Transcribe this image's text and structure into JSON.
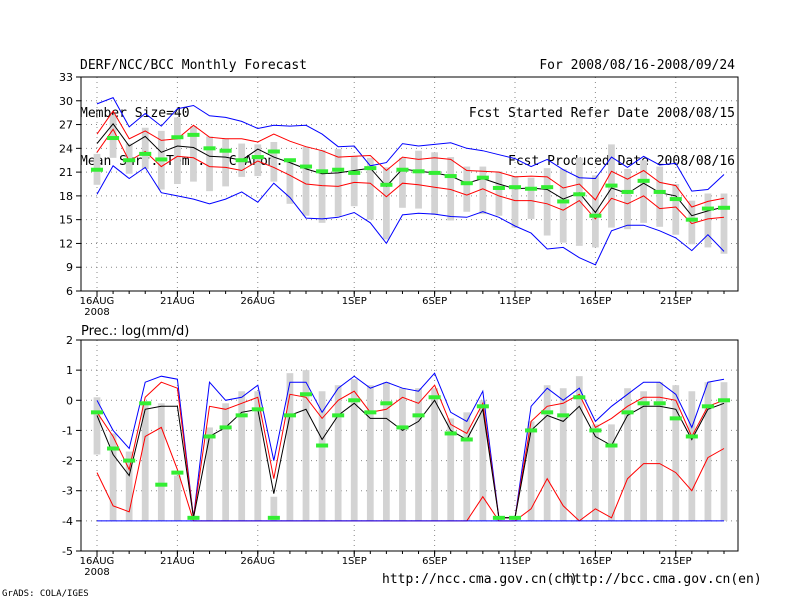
{
  "header": {
    "left": [
      "DERF/NCC/BCC Monthly Forecast",
      "Member Size=40",
      "Mean Surf. Temp.: °C Anom."
    ],
    "right": [
      "For 2008/08/16-2008/09/24",
      "Fcst Started Refer Date 2008/08/15",
      "Fcst Produced Date 2008/08/16"
    ]
  },
  "footer": {
    "url_ch": "http://ncc.cma.gov.cn(ch)",
    "url_en": "http://bcc.cma.gov.cn(en)",
    "credit": "GrADS: COLA/IGES"
  },
  "colors": {
    "envelope": "#0000ff",
    "spread": "#ff0000",
    "ensemble_mean": "#000000",
    "member_range_bar": "#d3d3d3",
    "median_marker": "#33ee33",
    "grid": "#888888"
  },
  "chart_data": [
    {
      "type": "line",
      "title": "Mean Surf. Temp.: °C Anom.",
      "x_dates": [
        "16AUG",
        "17AUG",
        "18AUG",
        "19AUG",
        "20AUG",
        "21AUG",
        "22AUG",
        "23AUG",
        "24AUG",
        "25AUG",
        "26AUG",
        "27AUG",
        "28AUG",
        "29AUG",
        "30AUG",
        "31AUG",
        "1SEP",
        "2SEP",
        "3SEP",
        "4SEP",
        "5SEP",
        "6SEP",
        "7SEP",
        "8SEP",
        "9SEP",
        "10SEP",
        "11SEP",
        "12SEP",
        "13SEP",
        "14SEP",
        "15SEP",
        "16SEP",
        "17SEP",
        "18SEP",
        "19SEP",
        "20SEP",
        "21SEP",
        "22SEP",
        "23SEP",
        "24SEP"
      ],
      "x_tick_labels": [
        "16AUG",
        "21AUG",
        "26AUG",
        "1SEP",
        "6SEP",
        "11SEP",
        "16SEP",
        "21SEP"
      ],
      "x_tick_indices": [
        0,
        5,
        10,
        16,
        21,
        26,
        31,
        36
      ],
      "x_sub_label": "2008",
      "ylim": [
        6,
        33
      ],
      "yticks": [
        6,
        9,
        12,
        15,
        18,
        21,
        24,
        27,
        30,
        33
      ],
      "series": [
        {
          "name": "max",
          "values": [
            29.6,
            30.4,
            26.7,
            28.4,
            26.8,
            29.0,
            29.4,
            28.1,
            27.9,
            27.4,
            26.5,
            26.9,
            26.8,
            26.9,
            25.8,
            24.2,
            24.3,
            21.8,
            22.2,
            24.6,
            24.3,
            24.5,
            24.7,
            24.0,
            23.7,
            23.2,
            22.7,
            21.7,
            22.6,
            21.3,
            20.3,
            20.2,
            22.9,
            21.6,
            23.0,
            21.9,
            22.1,
            18.6,
            18.8,
            20.7
          ]
        },
        {
          "name": "upper",
          "values": [
            25.8,
            28.7,
            25.2,
            26.2,
            25.0,
            25.2,
            26.9,
            25.4,
            25.2,
            25.2,
            24.8,
            25.8,
            24.9,
            24.2,
            23.7,
            22.9,
            23.0,
            23.1,
            21.2,
            22.9,
            22.6,
            22.8,
            22.6,
            21.2,
            21.1,
            21.0,
            20.4,
            20.5,
            20.4,
            19.0,
            19.5,
            17.5,
            21.1,
            20.1,
            21.2,
            19.7,
            19.3,
            16.6,
            17.3,
            17.7
          ]
        },
        {
          "name": "mean",
          "values": [
            24.6,
            27.1,
            24.3,
            25.5,
            23.5,
            24.3,
            24.1,
            23.0,
            22.9,
            22.5,
            23.9,
            22.9,
            22.2,
            21.4,
            20.8,
            20.9,
            21.2,
            21.5,
            19.2,
            21.4,
            21.1,
            20.9,
            20.5,
            19.6,
            20.2,
            19.5,
            18.9,
            19.0,
            18.8,
            17.6,
            18.4,
            15.9,
            19.0,
            18.3,
            19.6,
            18.4,
            18.0,
            15.5,
            16.1,
            16.6
          ]
        },
        {
          "name": "lower",
          "values": [
            23.5,
            26.4,
            22.4,
            23.6,
            21.7,
            23.0,
            22.8,
            21.7,
            21.6,
            21.2,
            22.4,
            21.6,
            20.6,
            19.5,
            19.3,
            19.2,
            19.7,
            19.6,
            17.9,
            19.6,
            19.4,
            19.1,
            18.8,
            18.1,
            18.9,
            18.0,
            17.4,
            17.4,
            17.0,
            16.2,
            17.4,
            15.1,
            17.7,
            17.0,
            18.0,
            16.4,
            16.6,
            14.5,
            15.1,
            15.3
          ]
        },
        {
          "name": "min",
          "values": [
            18.2,
            21.8,
            20.2,
            21.6,
            18.4,
            18.0,
            17.6,
            17.0,
            17.6,
            18.5,
            17.2,
            19.6,
            17.8,
            15.2,
            15.1,
            15.3,
            15.9,
            14.6,
            12.0,
            15.6,
            15.8,
            15.7,
            15.4,
            15.3,
            16.0,
            15.3,
            14.2,
            13.3,
            11.3,
            11.5,
            10.2,
            9.3,
            13.6,
            14.3,
            14.3,
            13.6,
            12.7,
            11.1,
            13.1,
            11.0
          ]
        }
      ],
      "range_bars": {
        "low": [
          19.4,
          22.8,
          20.8,
          21.4,
          18.8,
          19.5,
          19.8,
          18.6,
          19.2,
          20.4,
          20.5,
          19.8,
          17.0,
          15.5,
          14.6,
          15.4,
          16.7,
          15.0,
          12.5,
          16.5,
          16.4,
          15.6,
          14.9,
          16.0,
          15.7,
          15.5,
          14.0,
          15.1,
          13.0,
          12.1,
          11.7,
          11.5,
          14.0,
          13.8,
          14.6,
          14.1,
          13.1,
          11.9,
          11.5,
          10.7
        ],
        "high": [
          23.3,
          28.2,
          24.6,
          26.6,
          26.2,
          27.9,
          26.8,
          25.5,
          25.2,
          24.6,
          24.5,
          24.8,
          22.7,
          24.2,
          23.8,
          23.9,
          23.0,
          22.8,
          21.6,
          22.8,
          23.7,
          23.5,
          22.9,
          21.7,
          21.7,
          21.1,
          20.5,
          20.3,
          21.5,
          21.4,
          22.8,
          20.6,
          24.5,
          21.4,
          22.5,
          21.7,
          19.5,
          17.4,
          18.3,
          18.3
        ]
      },
      "median_markers": [
        21.3,
        25.3,
        22.5,
        23.3,
        22.6,
        25.4,
        25.7,
        24.0,
        23.7,
        22.5,
        22.9,
        23.6,
        22.5,
        21.7,
        21.1,
        21.3,
        20.9,
        21.5,
        19.4,
        21.3,
        21.1,
        20.9,
        20.5,
        19.6,
        20.3,
        19.0,
        19.1,
        18.9,
        19.1,
        17.3,
        18.2,
        15.5,
        19.3,
        18.5,
        19.9,
        18.5,
        17.6,
        15.0,
        16.4,
        16.5
      ]
    },
    {
      "type": "line",
      "title": "Prec.: log(mm/d)",
      "x_dates": [
        "16AUG",
        "17AUG",
        "18AUG",
        "19AUG",
        "20AUG",
        "21AUG",
        "22AUG",
        "23AUG",
        "24AUG",
        "25AUG",
        "26AUG",
        "27AUG",
        "28AUG",
        "29AUG",
        "30AUG",
        "31AUG",
        "1SEP",
        "2SEP",
        "3SEP",
        "4SEP",
        "5SEP",
        "6SEP",
        "7SEP",
        "8SEP",
        "9SEP",
        "10SEP",
        "11SEP",
        "12SEP",
        "13SEP",
        "14SEP",
        "15SEP",
        "16SEP",
        "17SEP",
        "18SEP",
        "19SEP",
        "20SEP",
        "21SEP",
        "22SEP",
        "23SEP",
        "24SEP"
      ],
      "x_tick_labels": [
        "16AUG",
        "21AUG",
        "26AUG",
        "1SEP",
        "6SEP",
        "11SEP",
        "16SEP",
        "21SEP"
      ],
      "x_tick_indices": [
        0,
        5,
        10,
        16,
        21,
        26,
        31,
        36
      ],
      "x_sub_label": "2008",
      "ylim": [
        -5,
        2
      ],
      "yticks": [
        -5,
        -4,
        -3,
        -2,
        -1,
        0,
        1,
        2
      ],
      "series": [
        {
          "name": "max",
          "values": [
            0.0,
            -1.0,
            -1.6,
            0.6,
            0.8,
            0.7,
            -3.9,
            0.6,
            0.0,
            0.1,
            0.5,
            -2.0,
            0.6,
            0.6,
            -0.4,
            0.4,
            0.8,
            0.4,
            0.6,
            0.4,
            0.3,
            0.9,
            -0.4,
            -0.7,
            0.3,
            -3.9,
            -3.9,
            -0.2,
            0.4,
            0.0,
            0.4,
            -0.7,
            -0.2,
            0.2,
            0.6,
            0.6,
            0.2,
            -0.9,
            0.6,
            0.7
          ]
        },
        {
          "name": "upper",
          "values": [
            -0.4,
            -1.2,
            -2.3,
            0.1,
            0.6,
            0.4,
            -3.9,
            -0.2,
            -0.3,
            -0.1,
            0.1,
            -2.6,
            0.2,
            0.1,
            -0.6,
            0.0,
            0.3,
            -0.4,
            -0.3,
            0.1,
            -0.1,
            0.5,
            -0.8,
            -1.1,
            -0.1,
            -3.9,
            -3.9,
            -0.7,
            -0.2,
            -0.1,
            0.2,
            -0.9,
            -0.6,
            -0.2,
            0.1,
            0.1,
            0.0,
            -1.2,
            -0.2,
            0.0
          ]
        },
        {
          "name": "mean",
          "values": [
            -0.5,
            -1.8,
            -2.5,
            -0.3,
            -0.2,
            -0.2,
            -3.9,
            -1.2,
            -0.9,
            -0.4,
            -0.3,
            -3.1,
            -0.5,
            -0.3,
            -1.3,
            -0.5,
            -0.1,
            -0.6,
            -0.6,
            -1.0,
            -0.7,
            0.0,
            -1.0,
            -1.3,
            -0.3,
            -3.9,
            -3.9,
            -1.0,
            -0.5,
            -0.7,
            -0.2,
            -1.2,
            -1.5,
            -0.5,
            -0.2,
            -0.2,
            -0.3,
            -1.3,
            -0.3,
            -0.1
          ]
        },
        {
          "name": "lower",
          "values": [
            -2.4,
            -3.5,
            -3.7,
            -1.2,
            -0.9,
            -2.3,
            -4.0,
            -4.0,
            -4.0,
            -4.0,
            -4.0,
            -4.0,
            -4.0,
            -4.0,
            -4.0,
            -4.0,
            -4.0,
            -4.0,
            -4.0,
            -4.0,
            -4.0,
            -4.0,
            -4.0,
            -4.0,
            -3.2,
            -4.0,
            -4.0,
            -3.6,
            -2.6,
            -3.5,
            -4.0,
            -3.6,
            -3.9,
            -2.6,
            -2.1,
            -2.1,
            -2.4,
            -3.0,
            -1.9,
            -1.6
          ]
        },
        {
          "name": "min",
          "values": [
            -4.0,
            -4.0,
            -4.0,
            -4.0,
            -4.0,
            -4.0,
            -4.0,
            -4.0,
            -4.0,
            -4.0,
            -4.0,
            -4.0,
            -4.0,
            -4.0,
            -4.0,
            -4.0,
            -4.0,
            -4.0,
            -4.0,
            -4.0,
            -4.0,
            -4.0,
            -4.0,
            -4.0,
            -4.0,
            -4.0,
            -4.0,
            -4.0,
            -4.0,
            -4.0,
            -4.0,
            -4.0,
            -4.0,
            -4.0,
            -4.0,
            -4.0,
            -4.0,
            -4.0,
            -4.0,
            -4.0
          ]
        }
      ],
      "range_bars": {
        "low": [
          -1.8,
          -4.0,
          -4.0,
          -4.0,
          -4.0,
          -4.0,
          -4.0,
          -4.0,
          -4.0,
          -4.0,
          -4.0,
          -4.0,
          -4.0,
          -4.0,
          -4.0,
          -4.0,
          -4.0,
          -4.0,
          -4.0,
          -4.0,
          -4.0,
          -4.0,
          -4.0,
          -4.0,
          -4.0,
          -4.0,
          -4.0,
          -4.0,
          -4.0,
          -4.0,
          -4.0,
          -4.0,
          -4.0,
          -4.0,
          -4.0,
          -4.0,
          -4.0,
          -4.0,
          -4.0,
          -4.0
        ],
        "high": [
          0.1,
          -1.1,
          -1.7,
          -0.1,
          -0.1,
          -2.5,
          -3.9,
          -0.9,
          -0.1,
          0.3,
          0.3,
          -3.2,
          0.9,
          1.0,
          0.3,
          0.5,
          0.7,
          0.5,
          0.6,
          0.4,
          0.4,
          0.4,
          -0.6,
          -0.4,
          0.0,
          -3.9,
          -3.9,
          -0.7,
          0.5,
          0.4,
          0.8,
          -0.8,
          -0.8,
          0.4,
          0.3,
          0.6,
          0.5,
          0.3,
          0.6,
          0.6
        ]
      },
      "median_markers": [
        -0.4,
        -1.6,
        -2.0,
        -0.1,
        -2.8,
        -2.4,
        -3.9,
        -1.2,
        -0.9,
        -0.5,
        -0.3,
        -3.9,
        -0.5,
        0.2,
        -1.5,
        -0.5,
        0.0,
        -0.4,
        -0.1,
        -0.9,
        -0.5,
        0.1,
        -1.1,
        -1.3,
        -0.2,
        -3.9,
        -3.9,
        -1.0,
        -0.4,
        -0.5,
        0.1,
        -1.0,
        -1.5,
        -0.4,
        -0.1,
        -0.1,
        -0.6,
        -1.2,
        -0.2,
        0.0
      ]
    }
  ]
}
